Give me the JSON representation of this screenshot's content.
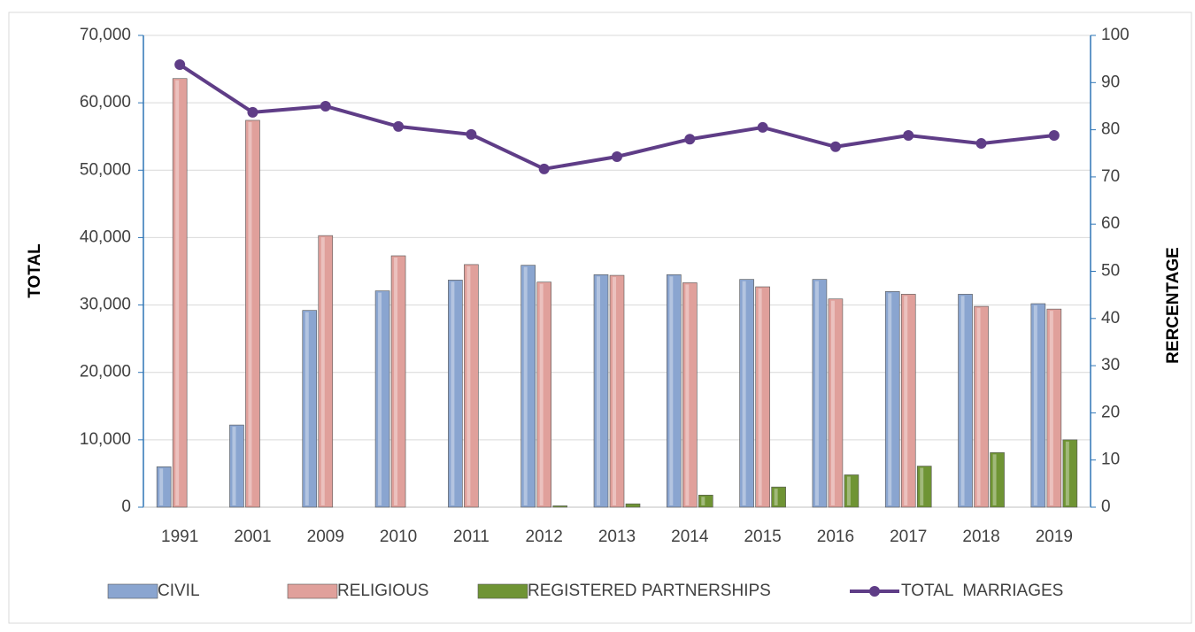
{
  "chart_data": {
    "type": "bar",
    "categories": [
      "1991",
      "2001",
      "2009",
      "2010",
      "2011",
      "2012",
      "2013",
      "2014",
      "2015",
      "2016",
      "2017",
      "2018",
      "2019"
    ],
    "y_label": "TOTAL",
    "y2_label": "RERCENTAGE",
    "ylim": [
      0,
      70000
    ],
    "yticks": [
      0,
      {
        "value": 10000,
        "label": "10,000"
      },
      {
        "value": 20000,
        "label": "20,000"
      },
      {
        "value": 30000,
        "label": "30,000"
      },
      {
        "value": 40000,
        "label": "40,000"
      },
      {
        "value": 50000,
        "label": "50,000"
      },
      {
        "value": 60000,
        "label": "60,000"
      },
      {
        "value": 70000,
        "label": "70,000"
      }
    ],
    "y2lim": [
      0,
      100
    ],
    "y2ticks": [
      0,
      10,
      20,
      30,
      40,
      50,
      60,
      70,
      80,
      90,
      100
    ],
    "grid": true,
    "series": [
      {
        "name": "CIVIL",
        "color": "#8aa5d0",
        "values": [
          6000,
          12200,
          29200,
          32100,
          33700,
          35900,
          34500,
          34500,
          33800,
          33800,
          32000,
          31600,
          30200
        ]
      },
      {
        "name": "RELIGIOUS",
        "color": "#e0a09b",
        "values": [
          63600,
          57400,
          40300,
          37300,
          36000,
          33400,
          34400,
          33300,
          32700,
          30900,
          31600,
          29800,
          29400
        ]
      },
      {
        "name": "REGISTERED PARTNERSHIPS",
        "color": "#6f9434",
        "values": [
          null,
          null,
          null,
          null,
          null,
          200,
          500,
          1800,
          3000,
          4800,
          6100,
          8100,
          10000
        ]
      },
      {
        "name": "TOTAL  MARRIAGES",
        "color": "#5f3d87",
        "type": "line",
        "axis": "y2",
        "values": [
          93.8,
          83.7,
          85,
          80.7,
          79,
          71.7,
          74.3,
          78,
          80.5,
          76.4,
          78.8,
          77.1,
          78.8
        ]
      }
    ]
  }
}
